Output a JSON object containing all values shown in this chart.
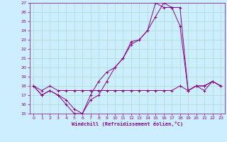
{
  "xlabel": "Windchill (Refroidissement éolien,°C)",
  "bg_color": "#cceeff",
  "grid_color": "#aaddcc",
  "line_color": "#880088",
  "xlim": [
    -0.5,
    23.5
  ],
  "ylim": [
    15,
    27
  ],
  "xticks": [
    0,
    1,
    2,
    3,
    4,
    5,
    6,
    7,
    8,
    9,
    10,
    11,
    12,
    13,
    14,
    15,
    16,
    17,
    18,
    19,
    20,
    21,
    22,
    23
  ],
  "yticks": [
    15,
    16,
    17,
    18,
    19,
    20,
    21,
    22,
    23,
    24,
    25,
    26,
    27
  ],
  "line1_x": [
    0,
    1,
    2,
    3,
    4,
    5,
    6,
    7,
    8,
    9,
    10,
    11,
    12,
    13,
    14,
    15,
    16,
    17,
    18,
    19,
    20,
    21,
    22,
    23
  ],
  "line1_y": [
    18,
    17,
    17.5,
    17,
    16,
    15,
    15,
    17,
    18.5,
    19.5,
    20,
    21,
    22.8,
    23,
    24,
    25.5,
    27,
    26.5,
    24.5,
    17.5,
    18,
    17.5,
    18.5,
    18
  ],
  "line2_x": [
    0,
    1,
    2,
    3,
    4,
    5,
    6,
    7,
    8,
    9,
    10,
    11,
    12,
    13,
    14,
    15,
    16,
    17,
    18,
    19,
    20,
    21,
    22,
    23
  ],
  "line2_y": [
    18,
    17,
    17.5,
    17,
    16.5,
    15.5,
    15,
    16.5,
    17,
    18.5,
    20,
    21,
    22.5,
    23,
    24,
    27,
    26.5,
    26.5,
    26.5,
    17.5,
    18,
    18,
    18.5,
    18
  ],
  "line3_x": [
    0,
    1,
    2,
    3,
    4,
    5,
    6,
    7,
    8,
    9,
    10,
    11,
    12,
    13,
    14,
    15,
    16,
    17,
    18,
    19,
    20,
    21,
    22,
    23
  ],
  "line3_y": [
    18,
    17.5,
    18,
    17.5,
    17.5,
    17.5,
    17.5,
    17.5,
    17.5,
    17.5,
    17.5,
    17.5,
    17.5,
    17.5,
    17.5,
    17.5,
    17.5,
    17.5,
    18,
    17.5,
    18,
    18,
    18.5,
    18
  ]
}
